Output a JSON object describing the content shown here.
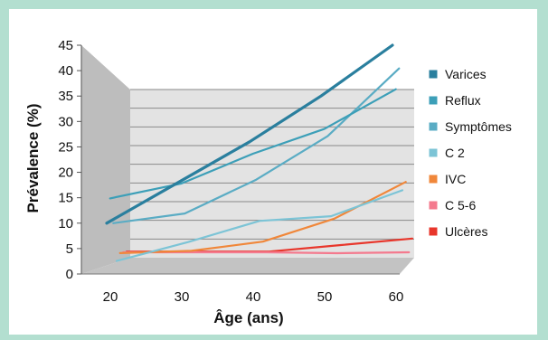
{
  "chart_data": {
    "type": "line",
    "xlabel": "Âge (ans)",
    "ylabel": "Prévalence (%)",
    "x": [
      20,
      30,
      40,
      50,
      60
    ],
    "x_ticks": [
      "20",
      "30",
      "40",
      "50",
      "60"
    ],
    "y_ticks": [
      "0",
      "5",
      "10",
      "15",
      "20",
      "25",
      "30",
      "35",
      "40",
      "45"
    ],
    "xlim": [
      20,
      60
    ],
    "ylim": [
      0,
      45
    ],
    "grid": true,
    "legend_position": "right",
    "style": "3d-perspective",
    "series": [
      {
        "name": "Varices",
        "color": "#2a7f9e",
        "values": [
          10,
          18,
          26,
          35,
          45
        ]
      },
      {
        "name": "Reflux",
        "color": "#3c9fb8",
        "values": [
          15,
          18,
          24,
          29,
          37
        ]
      },
      {
        "name": "Symptômes",
        "color": "#5aacc4",
        "values": [
          10,
          12,
          19,
          28,
          42
        ]
      },
      {
        "name": "C 2",
        "color": "#7cc4d6",
        "values": [
          2,
          6,
          10.5,
          11.5,
          17
        ]
      },
      {
        "name": "IVC",
        "color": "#f0873a",
        "values": [
          3.5,
          4,
          6,
          11,
          19
        ]
      },
      {
        "name": "C 5-6",
        "color": "#f47a8e",
        "values": [
          3.5,
          3.5,
          3.5,
          3.3,
          3.5
        ]
      },
      {
        "name": "Ulcères",
        "color": "#e8362b",
        "values": [
          3.5,
          3.5,
          3.5,
          5,
          6.5
        ]
      }
    ]
  }
}
